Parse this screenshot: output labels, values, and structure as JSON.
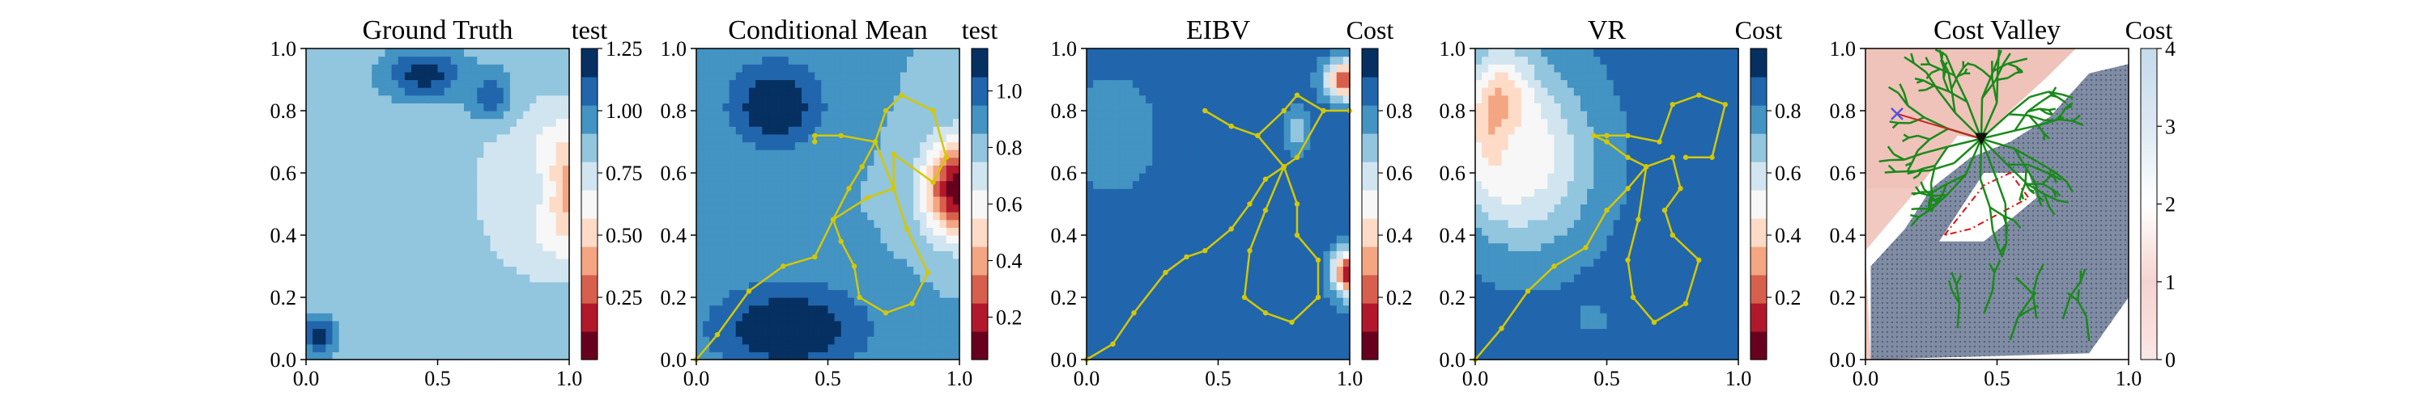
{
  "figure": {
    "panels": [
      {
        "title": "Ground Truth",
        "cbar_title": "test"
      },
      {
        "title": "Conditional Mean",
        "cbar_title": "test"
      },
      {
        "title": "EIBV",
        "cbar_title": "Cost"
      },
      {
        "title": "VR",
        "cbar_title": "Cost"
      },
      {
        "title": "Cost Valley",
        "cbar_title": "Cost"
      }
    ]
  },
  "colors": {
    "rdbu": [
      "#67001f",
      "#b2182b",
      "#d6604d",
      "#f4a582",
      "#fddbc7",
      "#f7f7f7",
      "#d1e5f0",
      "#92c5de",
      "#4393c3",
      "#2166ac",
      "#053061"
    ],
    "path": "#d4c800",
    "tree": "#1a8a1a",
    "valley_hatch": "#7f8ca3",
    "cross": "#5555dd",
    "triangle": "#111111",
    "dashed_zone": "#dd1111"
  },
  "chart_data": [
    {
      "type": "heatmap",
      "title": "Ground Truth",
      "xlim": [
        0,
        1
      ],
      "ylim": [
        0,
        1
      ],
      "xticks": [
        "0.0",
        "0.5",
        "1.0"
      ],
      "yticks": [
        "0.0",
        "0.2",
        "0.4",
        "0.6",
        "0.8",
        "1.0"
      ],
      "colorbar": {
        "title": "test",
        "range": [
          0.0,
          1.25
        ],
        "ticks": [
          "0.25",
          "0.50",
          "0.75",
          "1.00",
          "1.25"
        ],
        "levels": 11,
        "colormap": "RdBu"
      },
      "features": [
        {
          "kind": "min",
          "center": [
            0.98,
            0.55
          ],
          "value": 0.05,
          "spread": [
            0.14,
            0.18
          ]
        },
        {
          "kind": "ring",
          "center": [
            0.83,
            0.55
          ],
          "value": 0.72,
          "spread": [
            0.2,
            0.25
          ]
        },
        {
          "kind": "max",
          "center": [
            0.45,
            0.92
          ],
          "value": 1.2,
          "spread": [
            0.15,
            0.08
          ]
        },
        {
          "kind": "max",
          "center": [
            0.05,
            0.08
          ],
          "value": 1.2,
          "spread": [
            0.06,
            0.06
          ]
        },
        {
          "kind": "max",
          "center": [
            0.7,
            0.85
          ],
          "value": 1.1,
          "spread": [
            0.08,
            0.08
          ]
        }
      ]
    },
    {
      "type": "heatmap",
      "title": "Conditional Mean",
      "xlim": [
        0,
        1
      ],
      "ylim": [
        0,
        1
      ],
      "xticks": [
        "0.0",
        "0.5",
        "1.0"
      ],
      "yticks": [
        "0.0",
        "0.2",
        "0.4",
        "0.6",
        "0.8",
        "1.0"
      ],
      "colorbar": {
        "title": "test",
        "range": [
          0.05,
          1.15
        ],
        "ticks": [
          "0.2",
          "0.4",
          "0.6",
          "0.8",
          "1.0"
        ],
        "levels": 11,
        "colormap": "RdBu"
      },
      "features": [
        {
          "kind": "min",
          "center": [
            1.0,
            0.55
          ],
          "value": 0.05,
          "spread": [
            0.13,
            0.15
          ]
        },
        {
          "kind": "max",
          "center": [
            0.3,
            0.82
          ],
          "value": 1.15,
          "spread": [
            0.18,
            0.14
          ]
        },
        {
          "kind": "max",
          "center": [
            0.35,
            0.1
          ],
          "value": 1.15,
          "spread": [
            0.3,
            0.15
          ]
        }
      ],
      "path": [
        [
          0.0,
          0.0
        ],
        [
          0.08,
          0.08
        ],
        [
          0.2,
          0.22
        ],
        [
          0.33,
          0.3
        ],
        [
          0.45,
          0.33
        ],
        [
          0.52,
          0.45
        ],
        [
          0.58,
          0.55
        ],
        [
          0.63,
          0.62
        ],
        [
          0.68,
          0.7
        ],
        [
          0.72,
          0.8
        ],
        [
          0.78,
          0.85
        ],
        [
          0.9,
          0.8
        ],
        [
          0.95,
          0.65
        ],
        [
          0.9,
          0.57
        ],
        [
          0.75,
          0.66
        ],
        [
          0.75,
          0.55
        ],
        [
          0.65,
          0.52
        ],
        [
          0.52,
          0.45
        ],
        [
          0.55,
          0.38
        ],
        [
          0.6,
          0.3
        ],
        [
          0.62,
          0.2
        ],
        [
          0.72,
          0.15
        ],
        [
          0.82,
          0.18
        ],
        [
          0.88,
          0.28
        ],
        [
          0.8,
          0.42
        ],
        [
          0.75,
          0.55
        ],
        [
          0.68,
          0.7
        ],
        [
          0.55,
          0.72
        ],
        [
          0.45,
          0.72
        ],
        [
          0.45,
          0.7
        ]
      ]
    },
    {
      "type": "heatmap",
      "title": "EIBV",
      "xlim": [
        0,
        1
      ],
      "ylim": [
        0,
        1
      ],
      "xticks": [
        "0.0",
        "0.5",
        "1.0"
      ],
      "yticks": [
        "0.0",
        "0.2",
        "0.4",
        "0.6",
        "0.8",
        "1.0"
      ],
      "colorbar": {
        "title": "Cost",
        "range": [
          0.0,
          1.0
        ],
        "ticks": [
          "0.2",
          "0.4",
          "0.6",
          "0.8"
        ],
        "levels": 11,
        "colormap": "RdBu"
      },
      "features": [
        {
          "kind": "min",
          "center": [
            1.0,
            0.28
          ],
          "value": 0.05,
          "spread": [
            0.06,
            0.07
          ]
        },
        {
          "kind": "min",
          "center": [
            0.98,
            0.9
          ],
          "value": 0.2,
          "spread": [
            0.07,
            0.06
          ]
        },
        {
          "kind": "ring",
          "center": [
            0.8,
            0.74
          ],
          "value": 0.65,
          "spread": [
            0.04,
            0.06
          ]
        },
        {
          "kind": "ring",
          "center": [
            0.1,
            0.72
          ],
          "value": 0.75,
          "spread": [
            0.15,
            0.17
          ]
        },
        {
          "kind": "ring",
          "center": [
            0.6,
            0.85
          ],
          "value": 0.9,
          "spread": [
            0.08,
            0.08
          ]
        }
      ],
      "path": [
        [
          0.0,
          0.0
        ],
        [
          0.1,
          0.05
        ],
        [
          0.18,
          0.15
        ],
        [
          0.3,
          0.28
        ],
        [
          0.38,
          0.33
        ],
        [
          0.45,
          0.35
        ],
        [
          0.55,
          0.42
        ],
        [
          0.62,
          0.5
        ],
        [
          0.68,
          0.58
        ],
        [
          0.75,
          0.62
        ],
        [
          0.8,
          0.65
        ],
        [
          0.9,
          0.8
        ],
        [
          1.0,
          0.8
        ],
        [
          0.9,
          0.8
        ],
        [
          0.8,
          0.85
        ],
        [
          0.75,
          0.8
        ],
        [
          0.65,
          0.72
        ],
        [
          0.55,
          0.75
        ],
        [
          0.45,
          0.8
        ],
        [
          0.55,
          0.75
        ],
        [
          0.65,
          0.72
        ],
        [
          0.75,
          0.62
        ],
        [
          0.8,
          0.5
        ],
        [
          0.8,
          0.4
        ],
        [
          0.88,
          0.32
        ],
        [
          0.88,
          0.2
        ],
        [
          0.78,
          0.12
        ],
        [
          0.68,
          0.15
        ],
        [
          0.6,
          0.2
        ],
        [
          0.62,
          0.35
        ],
        [
          0.68,
          0.48
        ],
        [
          0.75,
          0.62
        ]
      ]
    },
    {
      "type": "heatmap",
      "title": "VR",
      "xlim": [
        0,
        1
      ],
      "ylim": [
        0,
        1
      ],
      "xticks": [
        "0.0",
        "0.5",
        "1.0"
      ],
      "yticks": [
        "0.0",
        "0.2",
        "0.4",
        "0.6",
        "0.8",
        "1.0"
      ],
      "colorbar": {
        "title": "Cost",
        "range": [
          0.0,
          1.0
        ],
        "ticks": [
          "0.2",
          "0.4",
          "0.6",
          "0.8"
        ],
        "levels": 11,
        "colormap": "RdBu"
      },
      "features": [
        {
          "kind": "min",
          "center": [
            0.1,
            0.75
          ],
          "value": 0.0,
          "spread": [
            0.12,
            0.2
          ]
        },
        {
          "kind": "ring",
          "center": [
            0.2,
            0.65
          ],
          "value": 0.5,
          "spread": [
            0.25,
            0.28
          ]
        },
        {
          "kind": "ring",
          "center": [
            0.45,
            0.13
          ],
          "value": 0.8,
          "spread": [
            0.08,
            0.06
          ]
        },
        {
          "kind": "ring",
          "center": [
            0.9,
            0.05
          ],
          "value": 0.85,
          "spread": [
            0.08,
            0.06
          ]
        }
      ],
      "path": [
        [
          0.0,
          0.0
        ],
        [
          0.1,
          0.1
        ],
        [
          0.2,
          0.22
        ],
        [
          0.3,
          0.3
        ],
        [
          0.42,
          0.36
        ],
        [
          0.5,
          0.48
        ],
        [
          0.58,
          0.55
        ],
        [
          0.65,
          0.62
        ],
        [
          0.75,
          0.65
        ],
        [
          0.78,
          0.55
        ],
        [
          0.72,
          0.48
        ],
        [
          0.75,
          0.4
        ],
        [
          0.85,
          0.32
        ],
        [
          0.8,
          0.18
        ],
        [
          0.68,
          0.12
        ],
        [
          0.6,
          0.2
        ],
        [
          0.58,
          0.32
        ],
        [
          0.62,
          0.45
        ],
        [
          0.65,
          0.62
        ],
        [
          0.58,
          0.65
        ],
        [
          0.5,
          0.7
        ],
        [
          0.45,
          0.72
        ],
        [
          0.5,
          0.72
        ],
        [
          0.58,
          0.72
        ],
        [
          0.7,
          0.7
        ],
        [
          0.75,
          0.82
        ],
        [
          0.85,
          0.85
        ],
        [
          0.95,
          0.82
        ],
        [
          0.9,
          0.65
        ],
        [
          0.8,
          0.65
        ]
      ]
    },
    {
      "type": "heatmap",
      "title": "Cost Valley",
      "xlim": [
        0,
        1
      ],
      "ylim": [
        0,
        1
      ],
      "xticks": [
        "0.0",
        "0.5",
        "1.0"
      ],
      "yticks": [
        "0.0",
        "0.2",
        "0.4",
        "0.6",
        "0.8",
        "1.0"
      ],
      "colorbar": {
        "title": "Cost",
        "range": [
          0,
          4
        ],
        "ticks": [
          "0",
          "1",
          "2",
          "3",
          "4"
        ],
        "colormap": "RdBu_light"
      },
      "current_location": [
        0.44,
        0.71
      ],
      "previous_location": [
        0.12,
        0.79
      ],
      "dashed_zone": [
        [
          0.3,
          0.4
        ],
        [
          0.45,
          0.56
        ],
        [
          0.55,
          0.6
        ],
        [
          0.62,
          0.52
        ],
        [
          0.4,
          0.42
        ]
      ]
    }
  ]
}
